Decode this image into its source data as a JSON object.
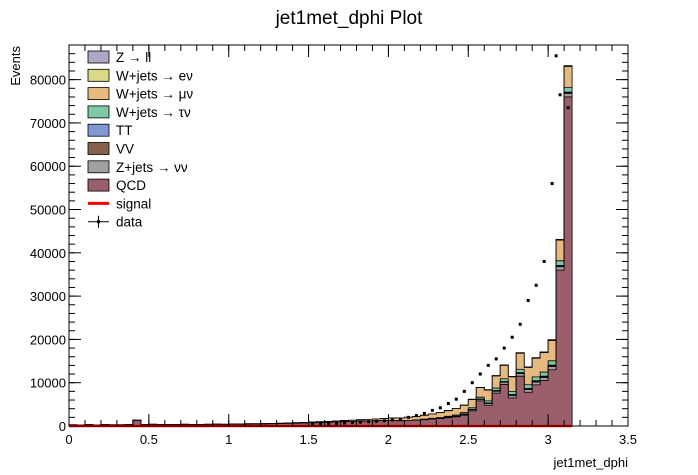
{
  "chart_data": {
    "type": "bar",
    "title": "jet1met_dphi Plot",
    "xlabel": "jet1met_dphi",
    "ylabel": "Events",
    "xlim": [
      0,
      3.5
    ],
    "ylim": [
      0,
      88000
    ],
    "x_ticks": [
      "0",
      "0.5",
      "1",
      "1.5",
      "2",
      "2.5",
      "3",
      "3.5"
    ],
    "y_ticks": [
      "0",
      "10000",
      "20000",
      "30000",
      "40000",
      "50000",
      "60000",
      "70000",
      "80000"
    ],
    "bin_width": 0.05,
    "bins_lowedge": [
      0.0,
      0.05,
      0.1,
      0.15,
      0.2,
      0.25,
      0.3,
      0.35,
      0.4,
      0.45,
      0.5,
      0.55,
      0.6,
      0.65,
      0.7,
      0.75,
      0.8,
      0.85,
      0.9,
      0.95,
      1.0,
      1.05,
      1.1,
      1.15,
      1.2,
      1.25,
      1.3,
      1.35,
      1.4,
      1.45,
      1.5,
      1.55,
      1.6,
      1.65,
      1.7,
      1.75,
      1.8,
      1.85,
      1.9,
      1.95,
      2.0,
      2.05,
      2.1,
      2.15,
      2.2,
      2.25,
      2.3,
      2.35,
      2.4,
      2.45,
      2.5,
      2.55,
      2.6,
      2.65,
      2.7,
      2.75,
      2.8,
      2.85,
      2.9,
      2.95,
      3.0,
      3.05,
      3.1
    ],
    "series": [
      {
        "name": "QCD",
        "color": "#9a5f6a",
        "values": [
          250,
          200,
          280,
          220,
          300,
          260,
          240,
          320,
          1300,
          300,
          350,
          280,
          300,
          320,
          350,
          300,
          320,
          350,
          380,
          360,
          400,
          420,
          440,
          460,
          480,
          520,
          560,
          600,
          650,
          700,
          760,
          820,
          880,
          950,
          1000,
          1050,
          1100,
          1150,
          1200,
          1250,
          1300,
          1200,
          1300,
          1350,
          1450,
          1600,
          1700,
          1900,
          2100,
          2500,
          3500,
          5800,
          4800,
          7600,
          9600,
          6500,
          11500,
          7800,
          9500,
          10500,
          13000,
          36000,
          76000
        ]
      },
      {
        "name": "Z+jets → νν",
        "color": "#a0a0a0",
        "values": [
          0,
          0,
          0,
          0,
          0,
          0,
          0,
          0,
          0,
          0,
          0,
          0,
          0,
          0,
          0,
          0,
          0,
          0,
          0,
          0,
          0,
          0,
          0,
          0,
          0,
          0,
          0,
          0,
          0,
          0,
          0,
          0,
          0,
          0,
          0,
          0,
          0,
          0,
          0,
          0,
          0,
          0,
          0,
          0,
          60,
          80,
          100,
          120,
          150,
          200,
          260,
          320,
          380,
          440,
          500,
          560,
          600,
          640,
          680,
          720,
          760,
          800,
          800
        ]
      },
      {
        "name": "VV",
        "color": "#87604c",
        "values": [
          0,
          0,
          0,
          0,
          0,
          0,
          0,
          0,
          0,
          0,
          0,
          0,
          0,
          0,
          0,
          0,
          0,
          0,
          0,
          0,
          0,
          0,
          0,
          0,
          0,
          0,
          0,
          0,
          0,
          0,
          0,
          0,
          0,
          0,
          0,
          0,
          0,
          0,
          0,
          0,
          0,
          0,
          0,
          0,
          0,
          0,
          0,
          20,
          30,
          40,
          50,
          60,
          70,
          80,
          90,
          100,
          110,
          120,
          130,
          140,
          150,
          150,
          150
        ]
      },
      {
        "name": "TT",
        "color": "#7f99d6",
        "values": [
          0,
          0,
          0,
          0,
          0,
          0,
          0,
          0,
          0,
          0,
          0,
          0,
          0,
          0,
          0,
          0,
          0,
          0,
          0,
          0,
          0,
          0,
          0,
          0,
          0,
          0,
          0,
          0,
          0,
          0,
          0,
          0,
          0,
          0,
          0,
          0,
          0,
          0,
          0,
          0,
          0,
          0,
          0,
          0,
          0,
          0,
          0,
          20,
          30,
          40,
          50,
          60,
          70,
          80,
          90,
          100,
          110,
          120,
          130,
          140,
          150,
          150,
          150
        ]
      },
      {
        "name": "W+jets → τν",
        "color": "#7cc9a6",
        "values": [
          0,
          0,
          0,
          0,
          0,
          0,
          0,
          0,
          0,
          0,
          0,
          0,
          0,
          0,
          0,
          0,
          0,
          0,
          0,
          0,
          0,
          0,
          0,
          0,
          0,
          0,
          0,
          0,
          0,
          0,
          0,
          0,
          0,
          0,
          0,
          0,
          0,
          0,
          0,
          0,
          0,
          0,
          0,
          30,
          60,
          100,
          140,
          180,
          230,
          290,
          350,
          420,
          480,
          560,
          640,
          700,
          780,
          840,
          900,
          960,
          1000,
          1050,
          1050
        ]
      },
      {
        "name": "W+jets → μν",
        "color": "#e6b97f",
        "values": [
          40,
          30,
          40,
          30,
          40,
          30,
          40,
          40,
          50,
          40,
          40,
          40,
          40,
          40,
          40,
          40,
          40,
          40,
          40,
          40,
          50,
          50,
          60,
          60,
          70,
          70,
          80,
          90,
          100,
          110,
          130,
          150,
          170,
          200,
          240,
          280,
          330,
          380,
          440,
          500,
          560,
          640,
          720,
          820,
          900,
          1000,
          1150,
          1300,
          1500,
          1700,
          1900,
          2200,
          2500,
          2800,
          3100,
          3400,
          3700,
          4000,
          4300,
          4500,
          4700,
          4800,
          4900
        ]
      },
      {
        "name": "W+jets → eν",
        "color": "#d9d986",
        "values": [
          0,
          0,
          0,
          0,
          0,
          0,
          0,
          0,
          0,
          0,
          0,
          0,
          0,
          0,
          0,
          0,
          0,
          0,
          0,
          0,
          0,
          0,
          0,
          0,
          0,
          0,
          0,
          0,
          0,
          0,
          0,
          0,
          0,
          0,
          0,
          0,
          0,
          0,
          0,
          0,
          0,
          0,
          0,
          0,
          0,
          0,
          0,
          20,
          30,
          40,
          50,
          60,
          70,
          80,
          90,
          100,
          110,
          120,
          130,
          140,
          150,
          150,
          150
        ]
      },
      {
        "name": "Z → ll",
        "color": "#b0a6c8",
        "values": [
          0,
          0,
          0,
          0,
          0,
          0,
          0,
          0,
          0,
          0,
          0,
          0,
          0,
          0,
          0,
          0,
          0,
          0,
          0,
          0,
          0,
          0,
          0,
          0,
          0,
          0,
          0,
          0,
          0,
          0,
          0,
          0,
          0,
          0,
          0,
          0,
          0,
          0,
          0,
          0,
          0,
          0,
          0,
          0,
          0,
          0,
          0,
          0,
          0,
          0,
          0,
          0,
          0,
          0,
          0,
          0,
          0,
          0,
          0,
          0,
          0,
          0,
          0
        ]
      }
    ],
    "signal": {
      "name": "signal",
      "color": "#ff0000",
      "values": [
        0,
        0,
        0,
        0,
        0,
        0,
        0,
        0,
        0,
        0,
        0,
        0,
        0,
        0,
        0,
        0,
        0,
        0,
        0,
        0,
        0,
        0,
        0,
        0,
        0,
        0,
        0,
        0,
        0,
        0,
        0,
        0,
        0,
        0,
        0,
        0,
        0,
        0,
        0,
        0,
        0,
        0,
        0,
        0,
        0,
        0,
        0,
        0,
        0,
        0,
        0,
        0,
        0,
        0,
        0,
        0,
        0,
        0,
        0,
        0,
        0,
        0,
        0
      ]
    },
    "data": {
      "name": "data",
      "x": [
        1.525,
        1.575,
        1.625,
        1.675,
        1.725,
        1.775,
        1.825,
        1.875,
        1.925,
        1.975,
        2.025,
        2.075,
        2.125,
        2.175,
        2.225,
        2.275,
        2.325,
        2.375,
        2.425,
        2.475,
        2.525,
        2.575,
        2.625,
        2.675,
        2.725,
        2.775,
        2.825,
        2.875,
        2.925,
        2.975,
        3.025,
        3.075,
        3.125
      ],
      "y": [
        400,
        450,
        500,
        600,
        700,
        800,
        900,
        1000,
        1100,
        1200,
        1400,
        1600,
        2000,
        2400,
        2900,
        3600,
        4200,
        5200,
        6200,
        8000,
        10000,
        12000,
        14000,
        15500,
        18000,
        20500,
        23500,
        29000,
        32500,
        38000,
        56000,
        76500,
        73500
      ],
      "x_extra": [
        3.05
      ],
      "y_extra": [
        85500
      ]
    },
    "legend": {
      "placement": "top-left",
      "entries": [
        {
          "label": "Z → ll",
          "color": "#b0a6c8",
          "kind": "box"
        },
        {
          "label": "W+jets → eν",
          "color": "#d9d986",
          "kind": "box"
        },
        {
          "label": "W+jets → μν",
          "color": "#e6b97f",
          "kind": "box"
        },
        {
          "label": "W+jets → τν",
          "color": "#7cc9a6",
          "kind": "box"
        },
        {
          "label": "TT",
          "color": "#7f99d6",
          "kind": "box"
        },
        {
          "label": "VV",
          "color": "#87604c",
          "kind": "box"
        },
        {
          "label": "Z+jets → νν",
          "color": "#a0a0a0",
          "kind": "box"
        },
        {
          "label": "QCD",
          "color": "#9a5f6a",
          "kind": "box"
        },
        {
          "label": "signal",
          "color": "#ff0000",
          "kind": "line"
        },
        {
          "label": "data",
          "color": "#000000",
          "kind": "marker"
        }
      ]
    }
  }
}
